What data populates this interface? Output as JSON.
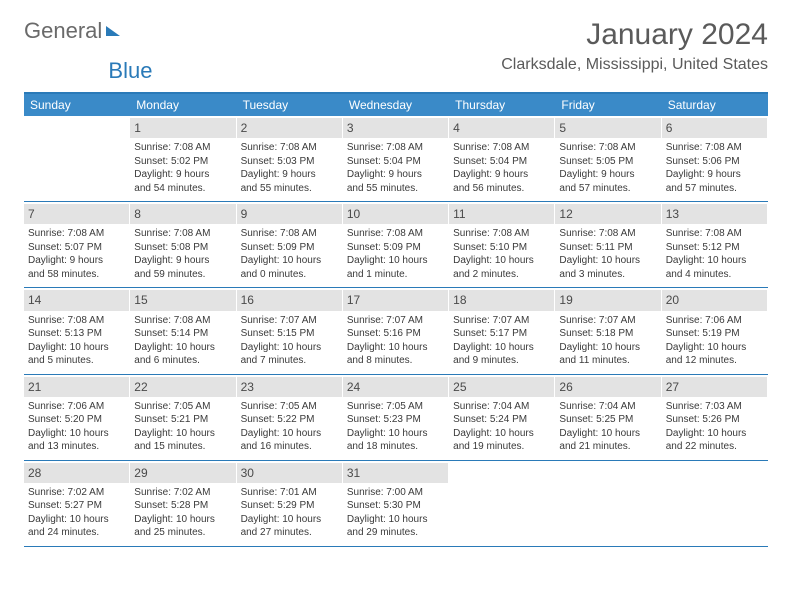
{
  "logo": {
    "part1": "General",
    "part2": "Blue"
  },
  "title": "January 2024",
  "location": "Clarksdale, Mississippi, United States",
  "header_bg_color": "#3a8ac8",
  "accent_color": "#2a7ab8",
  "weekdays": [
    "Sunday",
    "Monday",
    "Tuesday",
    "Wednesday",
    "Thursday",
    "Friday",
    "Saturday"
  ],
  "weeks": [
    [
      {
        "n": "",
        "sr": "",
        "ss": "",
        "d1": "",
        "d2": ""
      },
      {
        "n": "1",
        "sr": "Sunrise: 7:08 AM",
        "ss": "Sunset: 5:02 PM",
        "d1": "Daylight: 9 hours",
        "d2": "and 54 minutes."
      },
      {
        "n": "2",
        "sr": "Sunrise: 7:08 AM",
        "ss": "Sunset: 5:03 PM",
        "d1": "Daylight: 9 hours",
        "d2": "and 55 minutes."
      },
      {
        "n": "3",
        "sr": "Sunrise: 7:08 AM",
        "ss": "Sunset: 5:04 PM",
        "d1": "Daylight: 9 hours",
        "d2": "and 55 minutes."
      },
      {
        "n": "4",
        "sr": "Sunrise: 7:08 AM",
        "ss": "Sunset: 5:04 PM",
        "d1": "Daylight: 9 hours",
        "d2": "and 56 minutes."
      },
      {
        "n": "5",
        "sr": "Sunrise: 7:08 AM",
        "ss": "Sunset: 5:05 PM",
        "d1": "Daylight: 9 hours",
        "d2": "and 57 minutes."
      },
      {
        "n": "6",
        "sr": "Sunrise: 7:08 AM",
        "ss": "Sunset: 5:06 PM",
        "d1": "Daylight: 9 hours",
        "d2": "and 57 minutes."
      }
    ],
    [
      {
        "n": "7",
        "sr": "Sunrise: 7:08 AM",
        "ss": "Sunset: 5:07 PM",
        "d1": "Daylight: 9 hours",
        "d2": "and 58 minutes."
      },
      {
        "n": "8",
        "sr": "Sunrise: 7:08 AM",
        "ss": "Sunset: 5:08 PM",
        "d1": "Daylight: 9 hours",
        "d2": "and 59 minutes."
      },
      {
        "n": "9",
        "sr": "Sunrise: 7:08 AM",
        "ss": "Sunset: 5:09 PM",
        "d1": "Daylight: 10 hours",
        "d2": "and 0 minutes."
      },
      {
        "n": "10",
        "sr": "Sunrise: 7:08 AM",
        "ss": "Sunset: 5:09 PM",
        "d1": "Daylight: 10 hours",
        "d2": "and 1 minute."
      },
      {
        "n": "11",
        "sr": "Sunrise: 7:08 AM",
        "ss": "Sunset: 5:10 PM",
        "d1": "Daylight: 10 hours",
        "d2": "and 2 minutes."
      },
      {
        "n": "12",
        "sr": "Sunrise: 7:08 AM",
        "ss": "Sunset: 5:11 PM",
        "d1": "Daylight: 10 hours",
        "d2": "and 3 minutes."
      },
      {
        "n": "13",
        "sr": "Sunrise: 7:08 AM",
        "ss": "Sunset: 5:12 PM",
        "d1": "Daylight: 10 hours",
        "d2": "and 4 minutes."
      }
    ],
    [
      {
        "n": "14",
        "sr": "Sunrise: 7:08 AM",
        "ss": "Sunset: 5:13 PM",
        "d1": "Daylight: 10 hours",
        "d2": "and 5 minutes."
      },
      {
        "n": "15",
        "sr": "Sunrise: 7:08 AM",
        "ss": "Sunset: 5:14 PM",
        "d1": "Daylight: 10 hours",
        "d2": "and 6 minutes."
      },
      {
        "n": "16",
        "sr": "Sunrise: 7:07 AM",
        "ss": "Sunset: 5:15 PM",
        "d1": "Daylight: 10 hours",
        "d2": "and 7 minutes."
      },
      {
        "n": "17",
        "sr": "Sunrise: 7:07 AM",
        "ss": "Sunset: 5:16 PM",
        "d1": "Daylight: 10 hours",
        "d2": "and 8 minutes."
      },
      {
        "n": "18",
        "sr": "Sunrise: 7:07 AM",
        "ss": "Sunset: 5:17 PM",
        "d1": "Daylight: 10 hours",
        "d2": "and 9 minutes."
      },
      {
        "n": "19",
        "sr": "Sunrise: 7:07 AM",
        "ss": "Sunset: 5:18 PM",
        "d1": "Daylight: 10 hours",
        "d2": "and 11 minutes."
      },
      {
        "n": "20",
        "sr": "Sunrise: 7:06 AM",
        "ss": "Sunset: 5:19 PM",
        "d1": "Daylight: 10 hours",
        "d2": "and 12 minutes."
      }
    ],
    [
      {
        "n": "21",
        "sr": "Sunrise: 7:06 AM",
        "ss": "Sunset: 5:20 PM",
        "d1": "Daylight: 10 hours",
        "d2": "and 13 minutes."
      },
      {
        "n": "22",
        "sr": "Sunrise: 7:05 AM",
        "ss": "Sunset: 5:21 PM",
        "d1": "Daylight: 10 hours",
        "d2": "and 15 minutes."
      },
      {
        "n": "23",
        "sr": "Sunrise: 7:05 AM",
        "ss": "Sunset: 5:22 PM",
        "d1": "Daylight: 10 hours",
        "d2": "and 16 minutes."
      },
      {
        "n": "24",
        "sr": "Sunrise: 7:05 AM",
        "ss": "Sunset: 5:23 PM",
        "d1": "Daylight: 10 hours",
        "d2": "and 18 minutes."
      },
      {
        "n": "25",
        "sr": "Sunrise: 7:04 AM",
        "ss": "Sunset: 5:24 PM",
        "d1": "Daylight: 10 hours",
        "d2": "and 19 minutes."
      },
      {
        "n": "26",
        "sr": "Sunrise: 7:04 AM",
        "ss": "Sunset: 5:25 PM",
        "d1": "Daylight: 10 hours",
        "d2": "and 21 minutes."
      },
      {
        "n": "27",
        "sr": "Sunrise: 7:03 AM",
        "ss": "Sunset: 5:26 PM",
        "d1": "Daylight: 10 hours",
        "d2": "and 22 minutes."
      }
    ],
    [
      {
        "n": "28",
        "sr": "Sunrise: 7:02 AM",
        "ss": "Sunset: 5:27 PM",
        "d1": "Daylight: 10 hours",
        "d2": "and 24 minutes."
      },
      {
        "n": "29",
        "sr": "Sunrise: 7:02 AM",
        "ss": "Sunset: 5:28 PM",
        "d1": "Daylight: 10 hours",
        "d2": "and 25 minutes."
      },
      {
        "n": "30",
        "sr": "Sunrise: 7:01 AM",
        "ss": "Sunset: 5:29 PM",
        "d1": "Daylight: 10 hours",
        "d2": "and 27 minutes."
      },
      {
        "n": "31",
        "sr": "Sunrise: 7:00 AM",
        "ss": "Sunset: 5:30 PM",
        "d1": "Daylight: 10 hours",
        "d2": "and 29 minutes."
      },
      {
        "n": "",
        "sr": "",
        "ss": "",
        "d1": "",
        "d2": ""
      },
      {
        "n": "",
        "sr": "",
        "ss": "",
        "d1": "",
        "d2": ""
      },
      {
        "n": "",
        "sr": "",
        "ss": "",
        "d1": "",
        "d2": ""
      }
    ]
  ]
}
